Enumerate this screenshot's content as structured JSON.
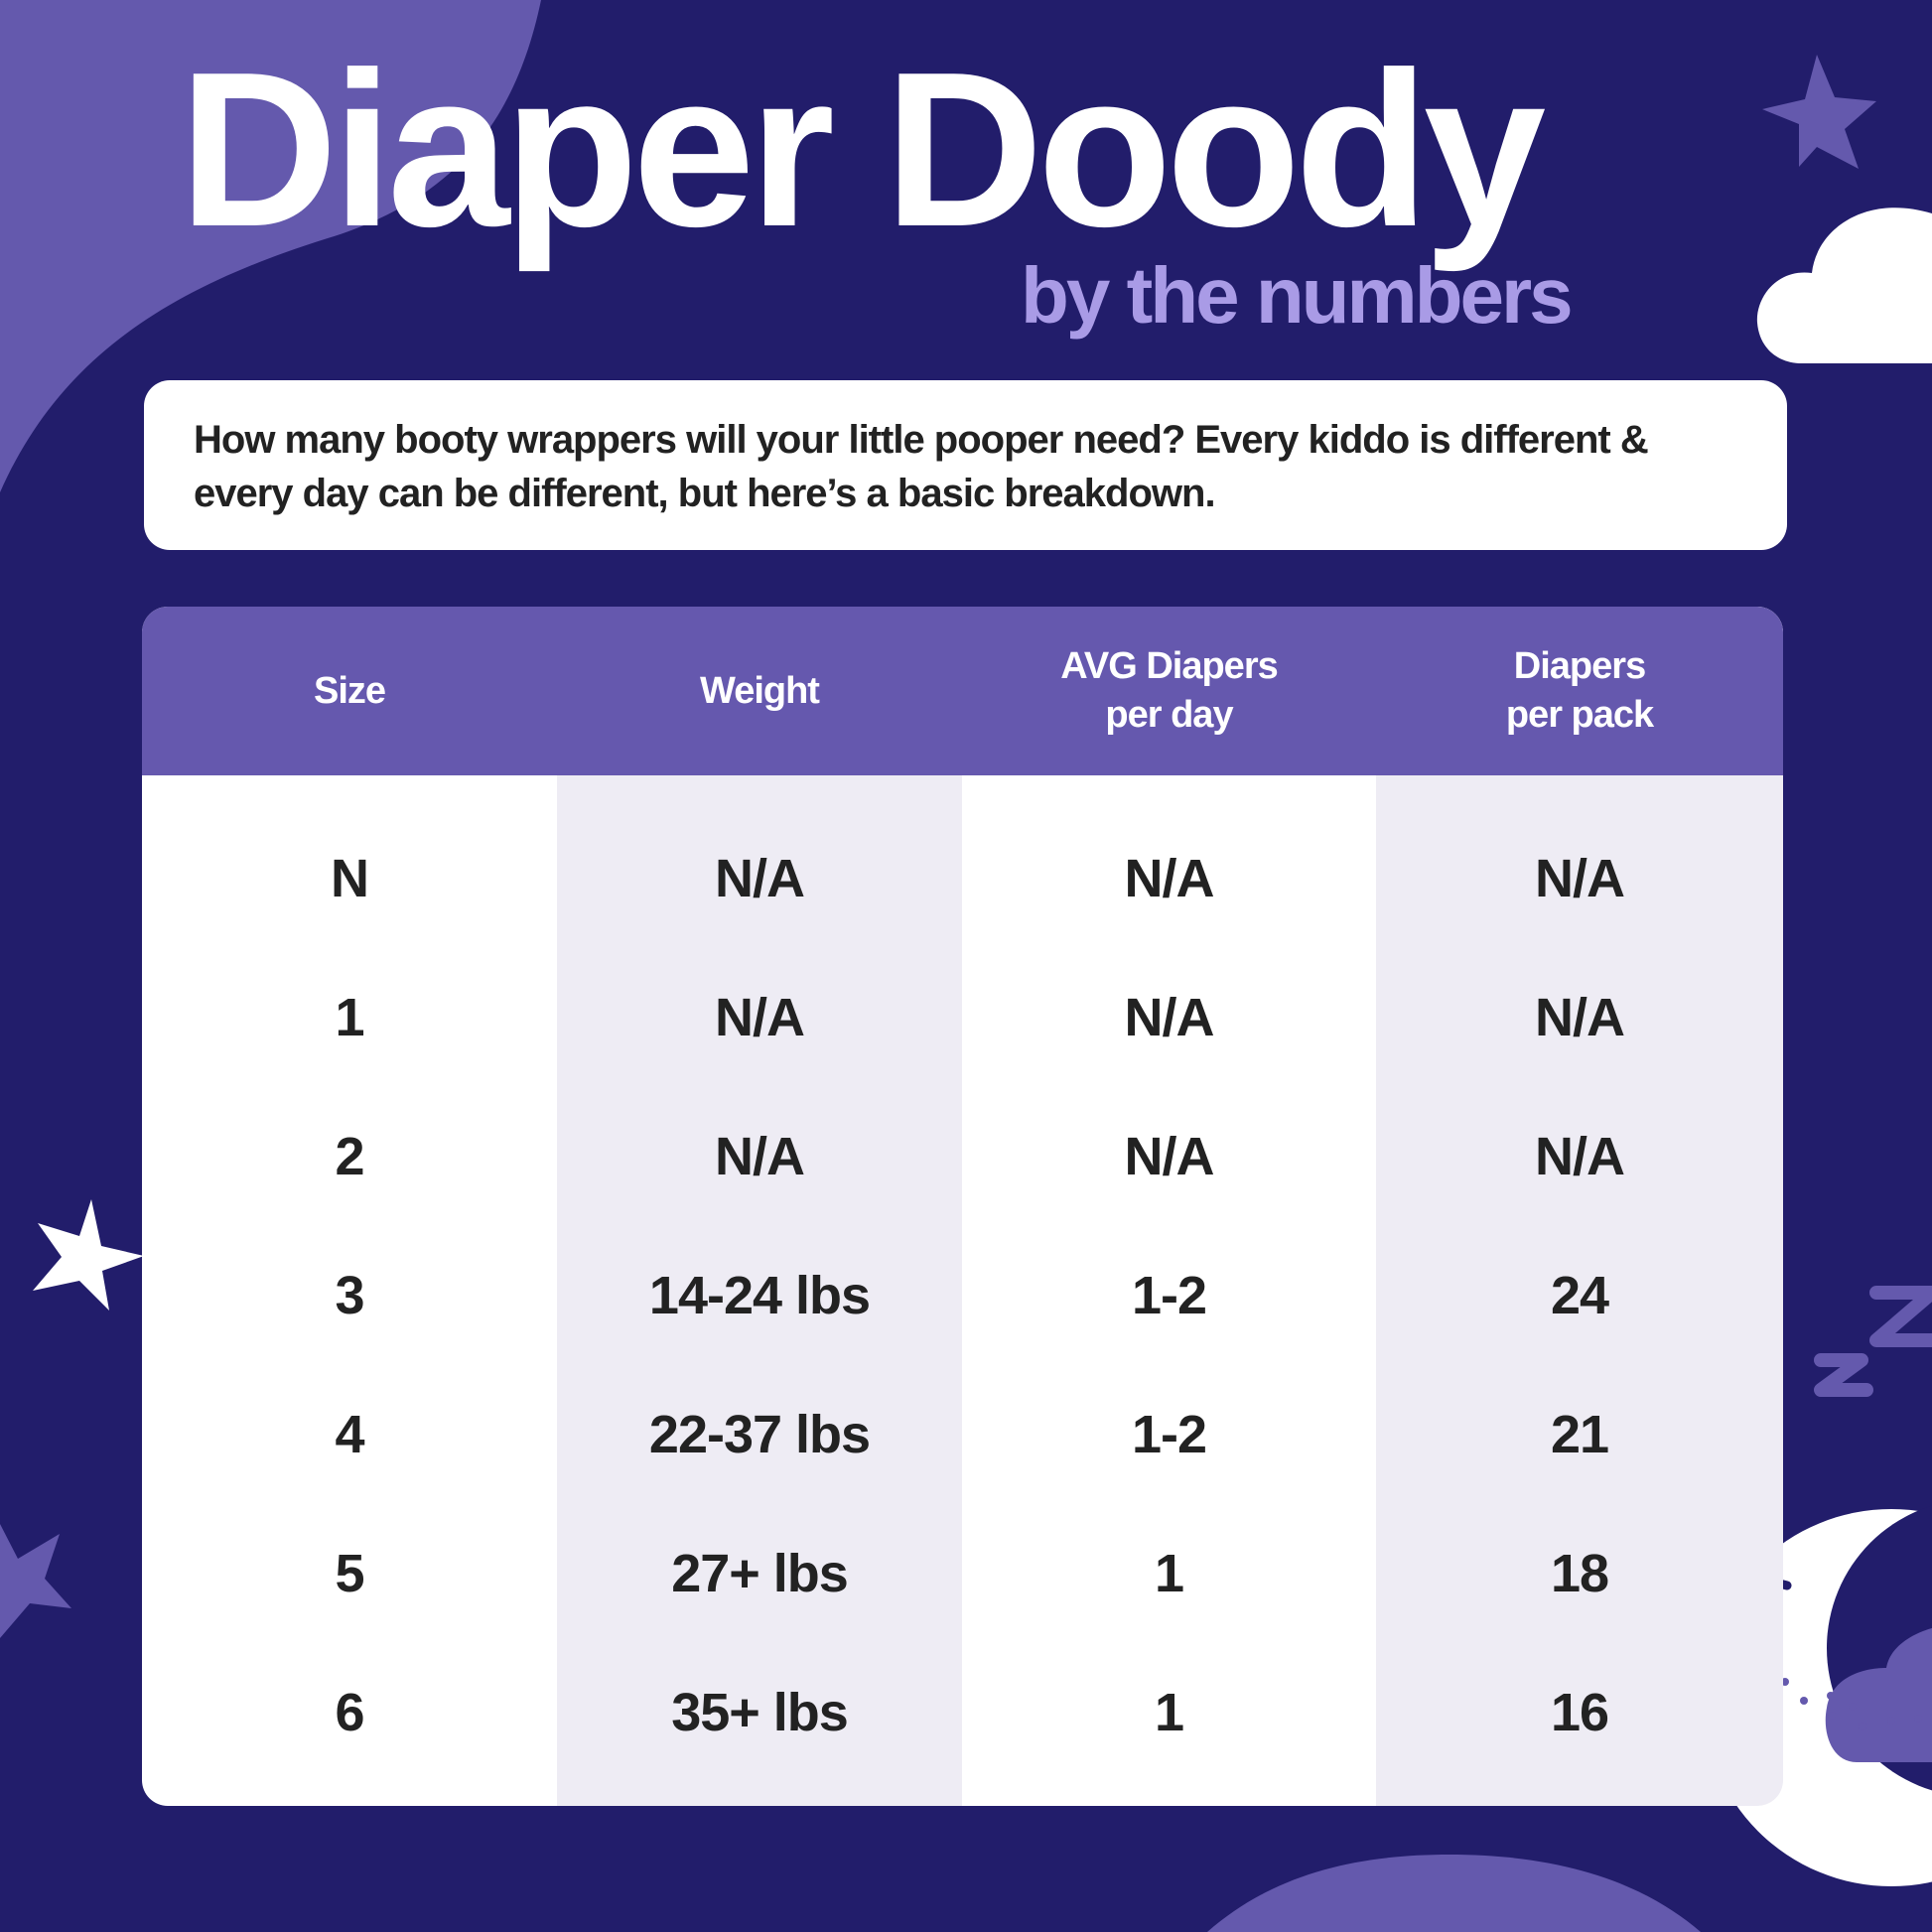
{
  "header": {
    "title": "Diaper Doody",
    "subtitle": "by the numbers"
  },
  "intro": {
    "text": "How many booty wrappers will your little pooper need? Every kiddo is different & every day can be different, but here’s a basic breakdown."
  },
  "table": {
    "columns": [
      "Size",
      "Weight",
      "AVG Diapers\nper day",
      "Diapers\nper pack"
    ],
    "rows": [
      [
        "N",
        "N/A",
        "N/A",
        "N/A"
      ],
      [
        "1",
        "N/A",
        "N/A",
        "N/A"
      ],
      [
        "2",
        "N/A",
        "N/A",
        "N/A"
      ],
      [
        "3",
        "14-24 lbs",
        "1-2",
        "24"
      ],
      [
        "4",
        "22-37 lbs",
        "1-2",
        "21"
      ],
      [
        "5",
        "27+ lbs",
        "1",
        "18"
      ],
      [
        "6",
        "35+ lbs",
        "1",
        "16"
      ]
    ]
  },
  "colors": {
    "background": "#221d6b",
    "accent": "#6558ae",
    "subtitle": "#a99be6",
    "alt_column": "#eeecf4"
  },
  "decorations": [
    "star-icon",
    "cloud-icon",
    "zz-sleep-icon",
    "sleeping-moon-icon"
  ]
}
